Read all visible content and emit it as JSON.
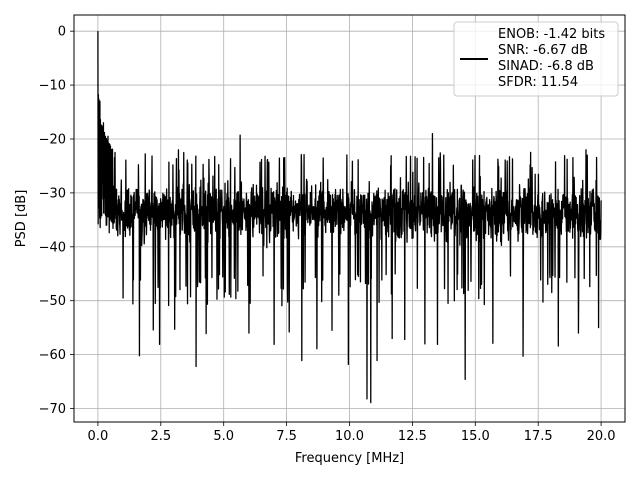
{
  "chart_data": {
    "type": "line",
    "title": "",
    "xlabel": "Frequency [MHz]",
    "ylabel": "PSD [dB]",
    "xlim": [
      -0.95,
      20.95
    ],
    "ylim": [
      -72.5,
      3.0
    ],
    "grid": true,
    "x_ticks": [
      0.0,
      2.5,
      5.0,
      7.5,
      10.0,
      12.5,
      15.0,
      17.5,
      20.0
    ],
    "x_tick_labels": [
      "0.0",
      "2.5",
      "5.0",
      "7.5",
      "10.0",
      "12.5",
      "15.0",
      "17.5",
      "20.0"
    ],
    "y_ticks": [
      0,
      -10,
      -20,
      -30,
      -40,
      -50,
      -60,
      -70
    ],
    "y_tick_labels": [
      "0",
      "−10",
      "−20",
      "−30",
      "−40",
      "−50",
      "−60",
      "−70"
    ],
    "legend_position": "top-right",
    "legend_lines": [
      "ENOB: -1.42 bits",
      "SNR: -6.67 dB",
      "SINAD: -6.8 dB",
      "SFDR: 11.54"
    ],
    "series": [
      {
        "color": "#000000",
        "x_range": [
          0.0,
          20.0
        ],
        "num_points": 2000,
        "peak": {
          "x": 0.0,
          "y": 0.0
        },
        "initial_decay": [
          [
            0.0,
            0.0
          ],
          [
            0.02,
            -12
          ],
          [
            0.1,
            -17
          ],
          [
            0.3,
            -20
          ],
          [
            0.6,
            -23
          ]
        ],
        "noise_floor_band": {
          "top": -25,
          "mean": -33.5,
          "bottom": -45
        },
        "spurs_up": [
          [
            0.08,
            -13
          ],
          [
            0.22,
            -17
          ],
          [
            0.4,
            -19.5
          ],
          [
            3.2,
            -22
          ],
          [
            5.65,
            -19.3
          ],
          [
            13.3,
            -19
          ],
          [
            17.2,
            -22.5
          ],
          [
            19.4,
            -22
          ]
        ],
        "spurs_down": [
          [
            1.0,
            -49.5
          ],
          [
            1.65,
            -60.2
          ],
          [
            2.2,
            -55.4
          ],
          [
            2.45,
            -58.1
          ],
          [
            3.05,
            -55.3
          ],
          [
            3.9,
            -62.2
          ],
          [
            4.3,
            -56.1
          ],
          [
            6.0,
            -56.0
          ],
          [
            7.0,
            -58.1
          ],
          [
            7.6,
            -55.8
          ],
          [
            8.1,
            -61.1
          ],
          [
            8.7,
            -58.9
          ],
          [
            9.3,
            -55.5
          ],
          [
            9.95,
            -61.8
          ],
          [
            10.7,
            -68.2
          ],
          [
            10.85,
            -68.9
          ],
          [
            11.1,
            -61.1
          ],
          [
            11.7,
            -57.0
          ],
          [
            12.2,
            -57.2
          ],
          [
            13.0,
            -58.0
          ],
          [
            13.5,
            -58.1
          ],
          [
            14.6,
            -64.6
          ],
          [
            15.7,
            -57.9
          ],
          [
            16.9,
            -60.3
          ],
          [
            18.3,
            -58.4
          ],
          [
            19.1,
            -56.0
          ],
          [
            19.9,
            -55.0
          ]
        ]
      }
    ]
  }
}
